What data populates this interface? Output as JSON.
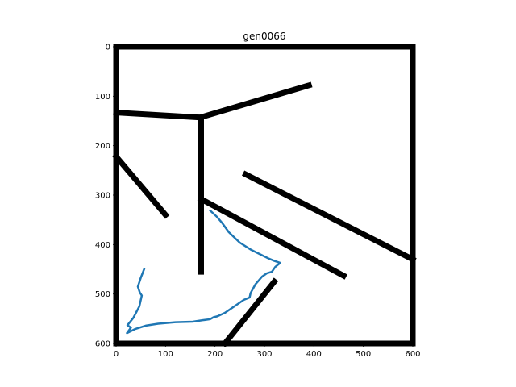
{
  "chart_data": {
    "type": "line",
    "title": "gen0066",
    "xlabel": "",
    "ylabel": "",
    "xlim": [
      0,
      600
    ],
    "ylim": [
      600,
      0
    ],
    "y_inverted": true,
    "grid": false,
    "xticks": [
      0,
      100,
      200,
      300,
      400,
      500,
      600
    ],
    "yticks": [
      0,
      100,
      200,
      300,
      400,
      500,
      600
    ],
    "walls": [
      {
        "points": [
          [
            0,
            0
          ],
          [
            600,
            0
          ]
        ]
      },
      {
        "points": [
          [
            0,
            0
          ],
          [
            0,
            600
          ]
        ]
      },
      {
        "points": [
          [
            600,
            0
          ],
          [
            600,
            600
          ]
        ]
      },
      {
        "points": [
          [
            0,
            600
          ],
          [
            600,
            600
          ]
        ]
      },
      {
        "points": [
          [
            0,
            133
          ],
          [
            170,
            143
          ],
          [
            390,
            78
          ]
        ]
      },
      {
        "points": [
          [
            172,
            143
          ],
          [
            172,
            455
          ]
        ]
      },
      {
        "points": [
          [
            0,
            222
          ],
          [
            100,
            340
          ]
        ]
      },
      {
        "points": [
          [
            172,
            308
          ],
          [
            460,
            463
          ]
        ]
      },
      {
        "points": [
          [
            262,
            258
          ],
          [
            600,
            430
          ]
        ]
      },
      {
        "points": [
          [
            320,
            475
          ],
          [
            220,
            600
          ]
        ]
      }
    ],
    "path": {
      "color": "#1f77b4",
      "points": [
        [
          57,
          449
        ],
        [
          50,
          467
        ],
        [
          44,
          485
        ],
        [
          48,
          497
        ],
        [
          52,
          503
        ],
        [
          47,
          525
        ],
        [
          35,
          548
        ],
        [
          23,
          563
        ],
        [
          30,
          568
        ],
        [
          22,
          579
        ],
        [
          38,
          571
        ],
        [
          60,
          564
        ],
        [
          85,
          560
        ],
        [
          120,
          557
        ],
        [
          155,
          556
        ],
        [
          175,
          553
        ],
        [
          190,
          551
        ],
        [
          197,
          547
        ],
        [
          205,
          545
        ],
        [
          220,
          538
        ],
        [
          242,
          523
        ],
        [
          258,
          512
        ],
        [
          270,
          507
        ],
        [
          272,
          498
        ],
        [
          282,
          480
        ],
        [
          295,
          465
        ],
        [
          305,
          458
        ],
        [
          315,
          455
        ],
        [
          322,
          445
        ],
        [
          332,
          437
        ],
        [
          320,
          433
        ],
        [
          308,
          428
        ],
        [
          292,
          420
        ],
        [
          272,
          410
        ],
        [
          250,
          396
        ],
        [
          228,
          375
        ],
        [
          215,
          357
        ],
        [
          203,
          343
        ],
        [
          190,
          331
        ]
      ]
    }
  }
}
